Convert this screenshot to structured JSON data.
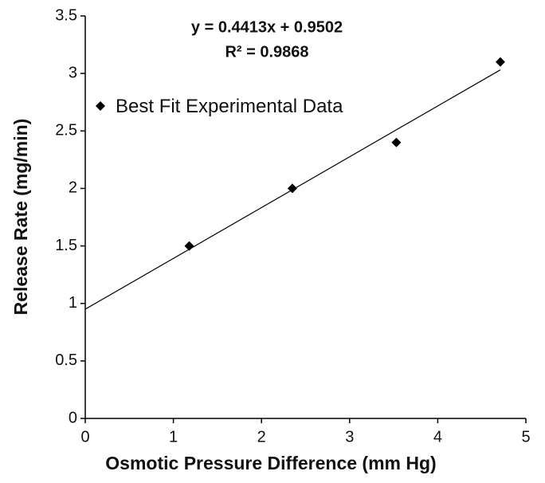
{
  "chart_data": {
    "type": "scatter",
    "x_label": "Osmotic Pressure Difference (mm Hg)",
    "y_label": "Release Rate (mg/min)",
    "annotations": [
      "y = 0.4413x + 0.9502",
      "R² = 0.9868"
    ],
    "series": [
      {
        "name": "Best Fit Experimental Data",
        "color": "#000000",
        "x": [
          1.18,
          2.35,
          3.53,
          4.71
        ],
        "values": [
          1.5,
          2.0,
          2.4,
          3.1
        ]
      }
    ],
    "trendline": true,
    "xlim": [
      0,
      5
    ],
    "xticks": [
      0,
      1,
      2,
      3,
      4,
      5
    ],
    "ylim": [
      0,
      3.5
    ],
    "yticks": [
      0,
      0.5,
      1,
      1.5,
      2,
      2.5,
      3,
      3.5
    ],
    "legend": "upper left"
  }
}
